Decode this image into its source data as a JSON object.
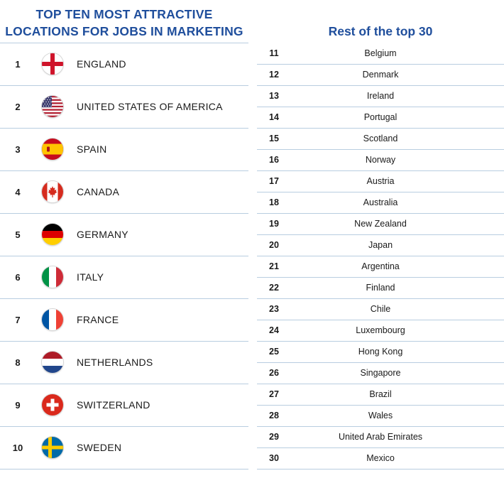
{
  "left_title_line1": "TOP TEN MOST ATTRACTIVE",
  "left_title_line2": "LOCATIONS FOR JOBS IN MARKETING",
  "right_title": "Rest of the top 30",
  "top_ten": [
    {
      "rank": "1",
      "country": "ENGLAND",
      "flag_icon": "england-flag-icon"
    },
    {
      "rank": "2",
      "country": "UNITED STATES OF AMERICA",
      "flag_icon": "usa-flag-icon"
    },
    {
      "rank": "3",
      "country": "SPAIN",
      "flag_icon": "spain-flag-icon"
    },
    {
      "rank": "4",
      "country": "CANADA",
      "flag_icon": "canada-flag-icon"
    },
    {
      "rank": "5",
      "country": "GERMANY",
      "flag_icon": "germany-flag-icon"
    },
    {
      "rank": "6",
      "country": "ITALY",
      "flag_icon": "italy-flag-icon"
    },
    {
      "rank": "7",
      "country": "FRANCE",
      "flag_icon": "france-flag-icon"
    },
    {
      "rank": "8",
      "country": "NETHERLANDS",
      "flag_icon": "netherlands-flag-icon"
    },
    {
      "rank": "9",
      "country": "SWITZERLAND",
      "flag_icon": "switzerland-flag-icon"
    },
    {
      "rank": "10",
      "country": "SWEDEN",
      "flag_icon": "sweden-flag-icon"
    }
  ],
  "rest": [
    {
      "rank": "11",
      "country": "Belgium"
    },
    {
      "rank": "12",
      "country": "Denmark"
    },
    {
      "rank": "13",
      "country": "Ireland"
    },
    {
      "rank": "14",
      "country": "Portugal"
    },
    {
      "rank": "15",
      "country": "Scotland"
    },
    {
      "rank": "16",
      "country": "Norway"
    },
    {
      "rank": "17",
      "country": "Austria"
    },
    {
      "rank": "18",
      "country": "Australia"
    },
    {
      "rank": "19",
      "country": "New Zealand"
    },
    {
      "rank": "20",
      "country": "Japan"
    },
    {
      "rank": "21",
      "country": "Argentina"
    },
    {
      "rank": "22",
      "country": "Finland"
    },
    {
      "rank": "23",
      "country": "Chile"
    },
    {
      "rank": "24",
      "country": "Luxembourg"
    },
    {
      "rank": "25",
      "country": "Hong Kong"
    },
    {
      "rank": "26",
      "country": "Singapore"
    },
    {
      "rank": "27",
      "country": "Brazil"
    },
    {
      "rank": "28",
      "country": "Wales"
    },
    {
      "rank": "29",
      "country": "United Arab Emirates"
    },
    {
      "rank": "30",
      "country": "Mexico"
    }
  ],
  "colors": {
    "title_blue": "#1f4e9c",
    "divider": "#b8cde0",
    "text": "#1a1a1a"
  }
}
